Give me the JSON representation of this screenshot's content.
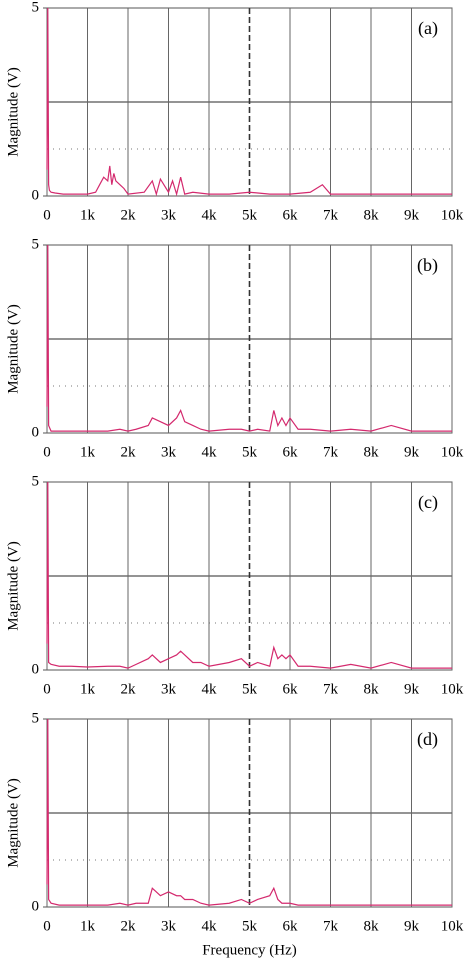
{
  "chart_data": [
    {
      "type": "line",
      "annotation": "(a)",
      "ylabel": "Magnitude (V)",
      "color": "#d42a6e",
      "xlim": [
        0,
        10000
      ],
      "ylim": [
        0,
        5
      ],
      "yticks": [
        0,
        5
      ],
      "xticks": [
        0,
        {
          "value": 1000,
          "label": "1k"
        },
        {
          "value": 2000,
          "label": "2k"
        },
        {
          "value": 3000,
          "label": "3k"
        },
        {
          "value": 4000,
          "label": "4k"
        },
        {
          "value": 5000,
          "label": "5k"
        },
        {
          "value": 6000,
          "label": "6k"
        },
        {
          "value": 7000,
          "label": "7k"
        },
        {
          "value": 8000,
          "label": "8k"
        },
        {
          "value": 9000,
          "label": "9k"
        },
        {
          "value": 10000,
          "label": "10k"
        }
      ],
      "x": [
        0,
        20,
        40,
        60,
        100,
        200,
        400,
        600,
        800,
        1000,
        1200,
        1300,
        1400,
        1500,
        1550,
        1600,
        1650,
        1700,
        1800,
        1900,
        2000,
        2400,
        2600,
        2700,
        2800,
        3000,
        3100,
        3200,
        3300,
        3400,
        3600,
        4000,
        4500,
        5000,
        5500,
        6000,
        6500,
        6800,
        7000,
        7500,
        8000,
        9000,
        10000
      ],
      "values": [
        0.7,
        5,
        0.3,
        0.15,
        0.1,
        0.08,
        0.05,
        0.05,
        0.05,
        0.05,
        0.1,
        0.3,
        0.5,
        0.4,
        0.8,
        0.3,
        0.6,
        0.4,
        0.3,
        0.2,
        0.05,
        0.1,
        0.4,
        0.05,
        0.45,
        0.1,
        0.4,
        0.05,
        0.5,
        0.05,
        0.1,
        0.05,
        0.05,
        0.1,
        0.05,
        0.05,
        0.1,
        0.3,
        0.05,
        0.05,
        0.05,
        0.05,
        0.05
      ]
    },
    {
      "type": "line",
      "annotation": "(b)",
      "ylabel": "Magnitude (V)",
      "color": "#d42a6e",
      "xlim": [
        0,
        10000
      ],
      "ylim": [
        0,
        5
      ],
      "yticks": [
        0,
        5
      ],
      "xticks": [
        0,
        {
          "value": 1000,
          "label": "1k"
        },
        {
          "value": 2000,
          "label": "2k"
        },
        {
          "value": 3000,
          "label": "3k"
        },
        {
          "value": 4000,
          "label": "4k"
        },
        {
          "value": 5000,
          "label": "5k"
        },
        {
          "value": 6000,
          "label": "6k"
        },
        {
          "value": 7000,
          "label": "7k"
        },
        {
          "value": 8000,
          "label": "8k"
        },
        {
          "value": 9000,
          "label": "9k"
        },
        {
          "value": 10000,
          "label": "10k"
        }
      ],
      "x": [
        0,
        20,
        40,
        100,
        300,
        600,
        1000,
        1500,
        1800,
        2000,
        2200,
        2500,
        2600,
        2800,
        3000,
        3200,
        3300,
        3400,
        3600,
        3800,
        4000,
        4500,
        4800,
        5000,
        5200,
        5500,
        5600,
        5700,
        5800,
        5900,
        6000,
        6200,
        6500,
        7000,
        7500,
        8000,
        8500,
        9000,
        9500,
        10000
      ],
      "values": [
        0.7,
        5,
        0.2,
        0.05,
        0.05,
        0.05,
        0.05,
        0.05,
        0.1,
        0.05,
        0.1,
        0.2,
        0.4,
        0.3,
        0.2,
        0.4,
        0.6,
        0.3,
        0.2,
        0.1,
        0.05,
        0.1,
        0.1,
        0.05,
        0.1,
        0.05,
        0.6,
        0.2,
        0.4,
        0.2,
        0.4,
        0.1,
        0.1,
        0.05,
        0.1,
        0.05,
        0.2,
        0.05,
        0.05,
        0.05
      ]
    },
    {
      "type": "line",
      "annotation": "(c)",
      "ylabel": "Magnitude (V)",
      "color": "#d42a6e",
      "xlim": [
        0,
        10000
      ],
      "ylim": [
        0,
        5
      ],
      "yticks": [
        0,
        5
      ],
      "xticks": [
        0,
        {
          "value": 1000,
          "label": "1k"
        },
        {
          "value": 2000,
          "label": "2k"
        },
        {
          "value": 3000,
          "label": "3k"
        },
        {
          "value": 4000,
          "label": "4k"
        },
        {
          "value": 5000,
          "label": "5k"
        },
        {
          "value": 6000,
          "label": "6k"
        },
        {
          "value": 7000,
          "label": "7k"
        },
        {
          "value": 8000,
          "label": "8k"
        },
        {
          "value": 9000,
          "label": "9k"
        },
        {
          "value": 10000,
          "label": "10k"
        }
      ],
      "x": [
        0,
        20,
        40,
        100,
        300,
        600,
        1000,
        1500,
        1800,
        2000,
        2200,
        2500,
        2600,
        2800,
        3000,
        3200,
        3300,
        3400,
        3600,
        3800,
        4000,
        4500,
        4800,
        5000,
        5200,
        5500,
        5600,
        5700,
        5800,
        5900,
        6000,
        6200,
        6500,
        7000,
        7500,
        8000,
        8500,
        9000,
        9500,
        10000
      ],
      "values": [
        0.7,
        5,
        0.2,
        0.15,
        0.1,
        0.1,
        0.08,
        0.1,
        0.1,
        0.05,
        0.15,
        0.3,
        0.4,
        0.2,
        0.3,
        0.4,
        0.5,
        0.4,
        0.2,
        0.2,
        0.1,
        0.2,
        0.3,
        0.1,
        0.2,
        0.1,
        0.6,
        0.3,
        0.4,
        0.3,
        0.4,
        0.1,
        0.1,
        0.05,
        0.15,
        0.05,
        0.2,
        0.05,
        0.05,
        0.05
      ]
    },
    {
      "type": "line",
      "annotation": "(d)",
      "ylabel": "Magnitude (V)",
      "xlabel": "Frequency (Hz)",
      "color": "#d42a6e",
      "xlim": [
        0,
        10000
      ],
      "ylim": [
        0,
        5
      ],
      "yticks": [
        0,
        5
      ],
      "xticks": [
        0,
        {
          "value": 1000,
          "label": "1k"
        },
        {
          "value": 2000,
          "label": "2k"
        },
        {
          "value": 3000,
          "label": "3k"
        },
        {
          "value": 4000,
          "label": "4k"
        },
        {
          "value": 5000,
          "label": "5k"
        },
        {
          "value": 6000,
          "label": "6k"
        },
        {
          "value": 7000,
          "label": "7k"
        },
        {
          "value": 8000,
          "label": "8k"
        },
        {
          "value": 9000,
          "label": "9k"
        },
        {
          "value": 10000,
          "label": "10k"
        }
      ],
      "x": [
        0,
        20,
        40,
        100,
        300,
        600,
        1000,
        1500,
        1800,
        2000,
        2200,
        2500,
        2600,
        2800,
        3000,
        3200,
        3300,
        3400,
        3600,
        3800,
        4000,
        4500,
        4800,
        5000,
        5200,
        5500,
        5600,
        5700,
        5800,
        5900,
        6000,
        6200,
        6500,
        7000,
        7500,
        8000,
        8500,
        9000,
        9500,
        10000
      ],
      "values": [
        0.6,
        5,
        0.2,
        0.1,
        0.05,
        0.05,
        0.05,
        0.05,
        0.1,
        0.05,
        0.1,
        0.1,
        0.5,
        0.3,
        0.4,
        0.3,
        0.3,
        0.2,
        0.2,
        0.1,
        0.05,
        0.1,
        0.2,
        0.1,
        0.2,
        0.3,
        0.5,
        0.2,
        0.1,
        0.1,
        0.1,
        0.05,
        0.05,
        0.05,
        0.05,
        0.05,
        0.05,
        0.05,
        0.05,
        0.05
      ]
    }
  ]
}
